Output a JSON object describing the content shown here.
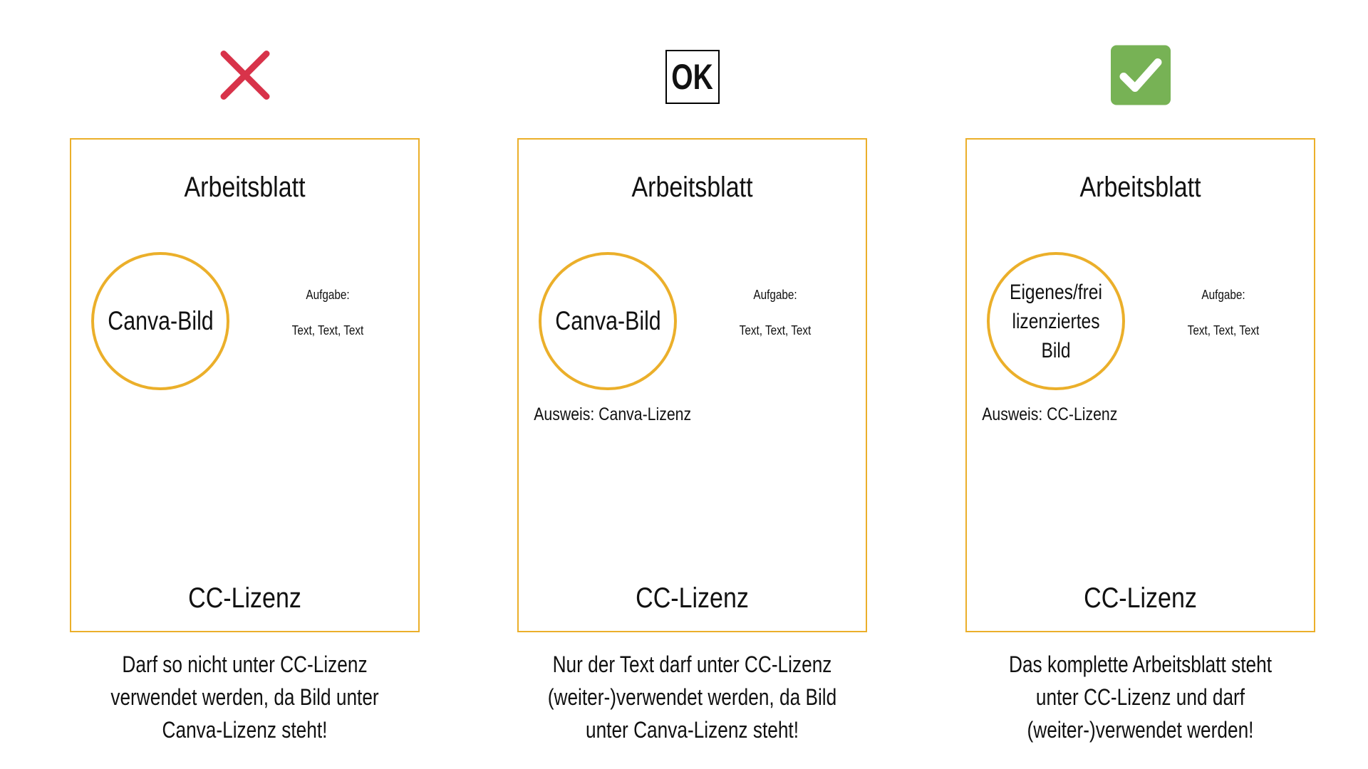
{
  "columns": [
    {
      "icon": "cross-icon",
      "icon_color": "#D8334A",
      "title": "Arbeitsblatt",
      "image_label": "Canva-Bild",
      "task_label": "Aufgabe:",
      "task_text": "Text, Text, Text",
      "credit": "",
      "license": "CC-Lizenz",
      "caption": [
        "Darf so nicht unter CC-Lizenz",
        "verwendet werden, da Bild unter",
        "Canva-Lizenz steht!"
      ]
    },
    {
      "icon": "ok-icon",
      "icon_text": "OK",
      "title": "Arbeitsblatt",
      "image_label": "Canva-Bild",
      "task_label": "Aufgabe:",
      "task_text": "Text, Text, Text",
      "credit": "Ausweis: Canva-Lizenz",
      "license": "CC-Lizenz",
      "caption": [
        "Nur der Text darf unter CC-Lizenz",
        "(weiter-)verwendet werden, da Bild",
        "unter Canva-Lizenz steht!"
      ]
    },
    {
      "icon": "check-icon",
      "icon_color": "#77B255",
      "title": "Arbeitsblatt",
      "image_label": "Eigenes/frei\nlizenziertes Bild",
      "task_label": "Aufgabe:",
      "task_text": "Text, Text, Text",
      "credit": "Ausweis: CC-Lizenz",
      "license": "CC-Lizenz",
      "caption": [
        "Das komplette Arbeitsblatt steht",
        "unter CC-Lizenz und darf",
        "(weiter-)verwendet werden!"
      ]
    }
  ],
  "colors": {
    "frame": "#EBAF2A"
  }
}
